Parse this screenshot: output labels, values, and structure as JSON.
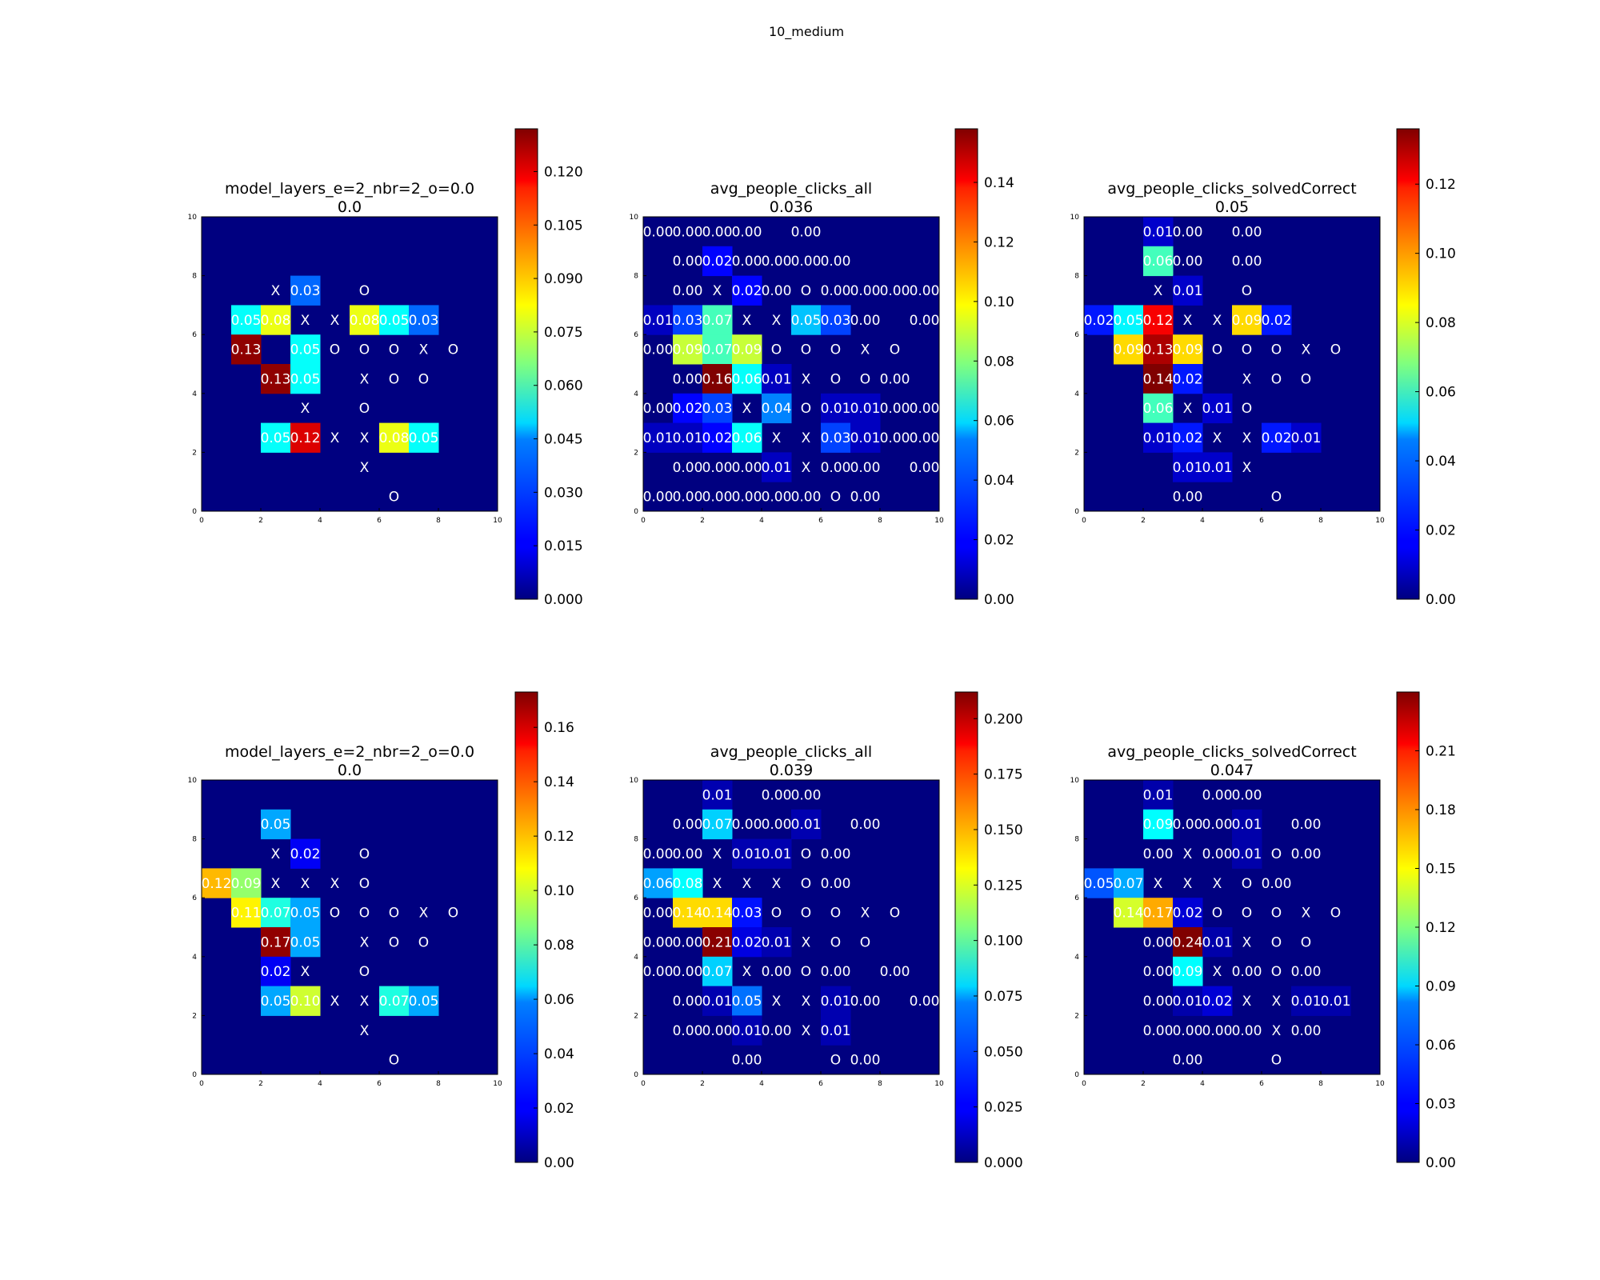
{
  "figure_title": "10_medium",
  "chart_data": [
    {
      "type": "heatmap",
      "title": "model_layers_e=2_nbr=2_o=0.0",
      "subtitle": "0.0",
      "xlim": [
        0,
        10
      ],
      "ylim": [
        0,
        10
      ],
      "xticks": [
        "0",
        "2",
        "4",
        "6",
        "8",
        "10"
      ],
      "yticks": [
        "0",
        "2",
        "4",
        "6",
        "8",
        "10"
      ],
      "colormap": "jet",
      "vmax": 0.132,
      "colorbar_ticks": [
        "0.000",
        "0.015",
        "0.030",
        "0.045",
        "0.060",
        "0.075",
        "0.090",
        "0.105",
        "0.120"
      ],
      "rows": [
        [
          "",
          "",
          "",
          "",
          "",
          "",
          "",
          "",
          "",
          ""
        ],
        [
          "",
          "",
          "",
          "",
          "",
          "",
          "",
          "",
          "",
          ""
        ],
        [
          "",
          "",
          "X",
          "0.03",
          "",
          "O",
          "",
          "",
          "",
          ""
        ],
        [
          "",
          "0.05",
          "0.08",
          "X",
          "X",
          "0.08",
          "0.05",
          "0.03",
          "",
          ""
        ],
        [
          "",
          "0.13",
          "",
          "0.05",
          "O",
          "O",
          "O",
          "X",
          "O",
          ""
        ],
        [
          "",
          "",
          "0.13",
          "0.05",
          "",
          "X",
          "O",
          "O",
          "",
          ""
        ],
        [
          "",
          "",
          "",
          "X",
          "",
          "O",
          "",
          "",
          "",
          ""
        ],
        [
          "",
          "",
          "0.05",
          "0.12",
          "X",
          "X",
          "0.08",
          "0.05",
          "",
          ""
        ],
        [
          "",
          "",
          "",
          "",
          "",
          "X",
          "",
          "",
          "",
          ""
        ],
        [
          "",
          "",
          "",
          "",
          "",
          "",
          "O",
          "",
          "",
          ""
        ]
      ]
    },
    {
      "type": "heatmap",
      "title": "avg_people_clicks_all",
      "subtitle": "0.036",
      "xlim": [
        0,
        10
      ],
      "ylim": [
        0,
        10
      ],
      "xticks": [
        "0",
        "2",
        "4",
        "6",
        "8",
        "10"
      ],
      "yticks": [
        "0",
        "2",
        "4",
        "6",
        "8",
        "10"
      ],
      "colormap": "jet",
      "vmax": 0.158,
      "colorbar_ticks": [
        "0.00",
        "0.02",
        "0.04",
        "0.06",
        "0.08",
        "0.10",
        "0.12",
        "0.14"
      ],
      "rows": [
        [
          "0.00",
          "0.00",
          "0.00",
          "0.00",
          "",
          "0.00",
          "",
          "",
          "",
          ""
        ],
        [
          "",
          "0.00",
          "0.02",
          "0.00",
          "0.00",
          "0.00",
          "0.00",
          "",
          "",
          ""
        ],
        [
          "",
          "0.00",
          "X",
          "0.02",
          "0.00",
          "O",
          "0.00",
          "0.00",
          "0.00",
          "0.00"
        ],
        [
          "0.01",
          "0.03",
          "0.07",
          "X",
          "X",
          "0.05",
          "0.03",
          "0.00",
          "",
          "0.00"
        ],
        [
          "0.00",
          "0.09",
          "0.07",
          "0.09",
          "O",
          "O",
          "O",
          "X",
          "O",
          ""
        ],
        [
          "",
          "0.00",
          "0.16",
          "0.06",
          "0.01",
          "X",
          "O",
          "O",
          "0.00",
          ""
        ],
        [
          "0.00",
          "0.02",
          "0.03",
          "X",
          "0.04",
          "O",
          "0.01",
          "0.01",
          "0.00",
          "0.00"
        ],
        [
          "0.01",
          "0.01",
          "0.02",
          "0.06",
          "X",
          "X",
          "0.03",
          "0.01",
          "0.00",
          "0.00"
        ],
        [
          "",
          "0.00",
          "0.00",
          "0.00",
          "0.01",
          "X",
          "0.00",
          "0.00",
          "",
          "0.00"
        ],
        [
          "0.00",
          "0.00",
          "0.00",
          "0.00",
          "0.00",
          "0.00",
          "O",
          "0.00",
          "",
          ""
        ]
      ]
    },
    {
      "type": "heatmap",
      "title": "avg_people_clicks_solvedCorrect",
      "subtitle": "0.05",
      "xlim": [
        0,
        10
      ],
      "ylim": [
        0,
        10
      ],
      "xticks": [
        "0",
        "2",
        "4",
        "6",
        "8",
        "10"
      ],
      "yticks": [
        "0",
        "2",
        "4",
        "6",
        "8",
        "10"
      ],
      "colormap": "jet",
      "vmax": 0.136,
      "colorbar_ticks": [
        "0.00",
        "0.02",
        "0.04",
        "0.06",
        "0.08",
        "0.10",
        "0.12"
      ],
      "rows": [
        [
          "",
          "",
          "0.01",
          "0.00",
          "",
          "0.00",
          "",
          "",
          "",
          ""
        ],
        [
          "",
          "",
          "0.06",
          "0.00",
          "",
          "0.00",
          "",
          "",
          "",
          ""
        ],
        [
          "",
          "",
          "X",
          "0.01",
          "",
          "O",
          "",
          "",
          "",
          ""
        ],
        [
          "0.02",
          "0.05",
          "0.12",
          "X",
          "X",
          "0.09",
          "0.02",
          "",
          "",
          ""
        ],
        [
          "",
          "0.09",
          "0.13",
          "0.09",
          "O",
          "O",
          "O",
          "X",
          "O",
          ""
        ],
        [
          "",
          "",
          "0.14",
          "0.02",
          "",
          "X",
          "O",
          "O",
          "",
          ""
        ],
        [
          "",
          "",
          "0.06",
          "X",
          "0.01",
          "O",
          "",
          "",
          "",
          ""
        ],
        [
          "",
          "",
          "0.01",
          "0.02",
          "X",
          "X",
          "0.02",
          "0.01",
          "",
          ""
        ],
        [
          "",
          "",
          "",
          "0.01",
          "0.01",
          "X",
          "",
          "",
          "",
          ""
        ],
        [
          "",
          "",
          "",
          "0.00",
          "",
          "",
          "O",
          "",
          "",
          ""
        ]
      ]
    },
    {
      "type": "heatmap",
      "title": "model_layers_e=2_nbr=2_o=0.0",
      "subtitle": "0.0",
      "xlim": [
        0,
        10
      ],
      "ylim": [
        0,
        10
      ],
      "xticks": [
        "0",
        "2",
        "4",
        "6",
        "8",
        "10"
      ],
      "yticks": [
        "0",
        "2",
        "4",
        "6",
        "8",
        "10"
      ],
      "colormap": "jet",
      "vmax": 0.173,
      "colorbar_ticks": [
        "0.00",
        "0.02",
        "0.04",
        "0.06",
        "0.08",
        "0.10",
        "0.12",
        "0.14",
        "0.16"
      ],
      "rows": [
        [
          "",
          "",
          "",
          "",
          "",
          "",
          "",
          "",
          "",
          ""
        ],
        [
          "",
          "",
          "0.05",
          "",
          "",
          "",
          "",
          "",
          "",
          ""
        ],
        [
          "",
          "",
          "X",
          "0.02",
          "",
          "O",
          "",
          "",
          "",
          ""
        ],
        [
          "0.12",
          "0.09",
          "X",
          "X",
          "X",
          "O",
          "",
          "",
          "",
          ""
        ],
        [
          "",
          "0.11",
          "0.07",
          "0.05",
          "O",
          "O",
          "O",
          "X",
          "O",
          ""
        ],
        [
          "",
          "",
          "0.17",
          "0.05",
          "",
          "X",
          "O",
          "O",
          "",
          ""
        ],
        [
          "",
          "",
          "0.02",
          "X",
          "",
          "O",
          "",
          "",
          "",
          ""
        ],
        [
          "",
          "",
          "0.05",
          "0.10",
          "X",
          "X",
          "0.07",
          "0.05",
          "",
          ""
        ],
        [
          "",
          "",
          "",
          "",
          "",
          "X",
          "",
          "",
          "",
          ""
        ],
        [
          "",
          "",
          "",
          "",
          "",
          "",
          "O",
          "",
          "",
          ""
        ]
      ]
    },
    {
      "type": "heatmap",
      "title": "avg_people_clicks_all",
      "subtitle": "0.039",
      "xlim": [
        0,
        10
      ],
      "ylim": [
        0,
        10
      ],
      "xticks": [
        "0",
        "2",
        "4",
        "6",
        "8",
        "10"
      ],
      "yticks": [
        "0",
        "2",
        "4",
        "6",
        "8",
        "10"
      ],
      "colormap": "jet",
      "vmax": 0.212,
      "colorbar_ticks": [
        "0.000",
        "0.025",
        "0.050",
        "0.075",
        "0.100",
        "0.125",
        "0.150",
        "0.175",
        "0.200"
      ],
      "rows": [
        [
          "",
          "",
          "0.01",
          "",
          "0.00",
          "0.00",
          "",
          "",
          "",
          ""
        ],
        [
          "",
          "0.00",
          "0.07",
          "0.00",
          "0.00",
          "0.01",
          "",
          "0.00",
          "",
          ""
        ],
        [
          "0.00",
          "0.00",
          "X",
          "0.01",
          "0.01",
          "O",
          "0.00",
          "",
          "",
          ""
        ],
        [
          "0.06",
          "0.08",
          "X",
          "X",
          "X",
          "O",
          "0.00",
          "",
          "",
          ""
        ],
        [
          "0.00",
          "0.14",
          "0.14",
          "0.03",
          "O",
          "O",
          "O",
          "X",
          "O",
          ""
        ],
        [
          "0.00",
          "0.00",
          "0.21",
          "0.02",
          "0.01",
          "X",
          "O",
          "O",
          "",
          ""
        ],
        [
          "0.00",
          "0.00",
          "0.07",
          "X",
          "0.00",
          "O",
          "0.00",
          "",
          "0.00",
          ""
        ],
        [
          "",
          "0.00",
          "0.01",
          "0.05",
          "X",
          "X",
          "0.01",
          "0.00",
          "",
          "0.00"
        ],
        [
          "",
          "0.00",
          "0.00",
          "0.01",
          "0.00",
          "X",
          "0.01",
          "",
          "",
          ""
        ],
        [
          "",
          "",
          "",
          "0.00",
          "",
          "",
          "O",
          "0.00",
          "",
          ""
        ]
      ]
    },
    {
      "type": "heatmap",
      "title": "avg_people_clicks_solvedCorrect",
      "subtitle": "0.047",
      "xlim": [
        0,
        10
      ],
      "ylim": [
        0,
        10
      ],
      "xticks": [
        "0",
        "2",
        "4",
        "6",
        "8",
        "10"
      ],
      "yticks": [
        "0",
        "2",
        "4",
        "6",
        "8",
        "10"
      ],
      "colormap": "jet",
      "vmax": 0.24,
      "colorbar_ticks": [
        "0.00",
        "0.03",
        "0.06",
        "0.09",
        "0.12",
        "0.15",
        "0.18",
        "0.21"
      ],
      "rows": [
        [
          "",
          "",
          "0.01",
          "",
          "0.00",
          "0.00",
          "",
          "",
          "",
          ""
        ],
        [
          "",
          "",
          "0.09",
          "0.00",
          "0.00",
          "0.01",
          "",
          "0.00",
          "",
          ""
        ],
        [
          "",
          "",
          "0.00",
          "X",
          "0.00",
          "0.01",
          "O",
          "0.00",
          "",
          ""
        ],
        [
          "0.05",
          "0.07",
          "X",
          "X",
          "X",
          "O",
          "0.00",
          "",
          "",
          ""
        ],
        [
          "",
          "0.14",
          "0.17",
          "0.02",
          "O",
          "O",
          "O",
          "X",
          "O",
          ""
        ],
        [
          "",
          "",
          "0.00",
          "0.24",
          "0.01",
          "X",
          "O",
          "O",
          "",
          ""
        ],
        [
          "",
          "",
          "0.00",
          "0.09",
          "X",
          "0.00",
          "O",
          "0.00",
          "",
          ""
        ],
        [
          "",
          "",
          "0.00",
          "0.01",
          "0.02",
          "X",
          "X",
          "0.01",
          "0.01",
          ""
        ],
        [
          "",
          "",
          "0.00",
          "0.00",
          "0.00",
          "0.00",
          "X",
          "0.00",
          "",
          ""
        ],
        [
          "",
          "",
          "",
          "0.00",
          "",
          "",
          "O",
          "",
          "",
          ""
        ]
      ]
    }
  ]
}
